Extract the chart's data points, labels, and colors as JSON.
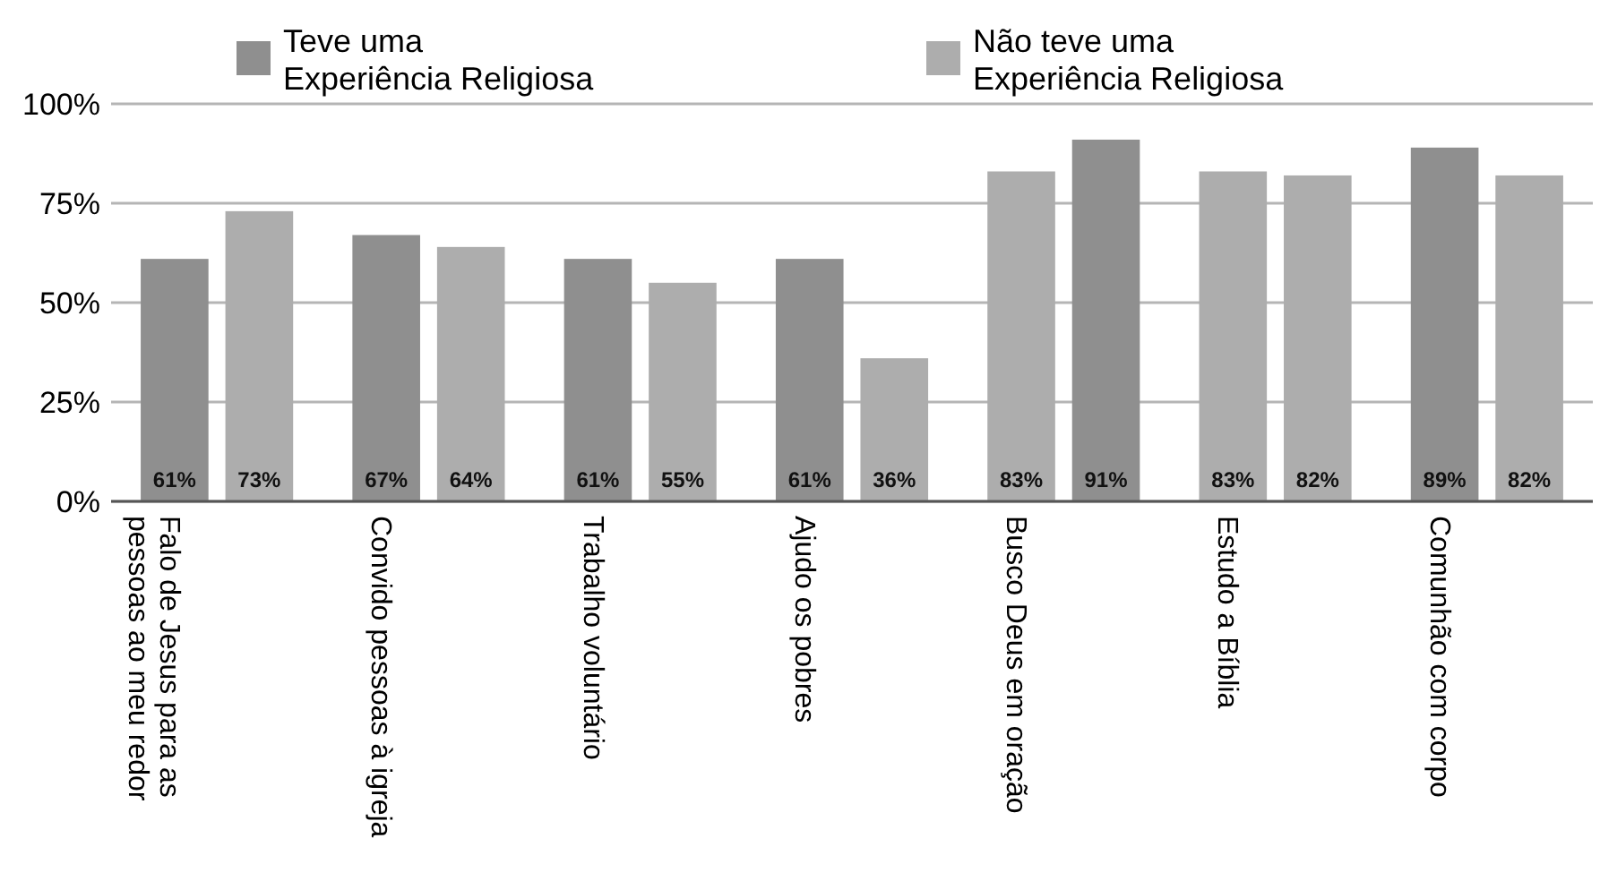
{
  "chart_data": {
    "type": "bar",
    "categories": [
      "Falo de Jesus para as pessoas ao meu redor",
      "Convido pessoas à igreja",
      "Trabalho voluntário",
      "Ajudo os pobres",
      "Busco Deus em oração",
      "Estudo a Bíblia",
      "Comunhão com corpo"
    ],
    "series": [
      {
        "name": "Teve uma Experiência Religiosa",
        "color": "#8f8f8f",
        "colors": [
          "#8f8f8f",
          "#8f8f8f",
          "#8f8f8f",
          "#8f8f8f",
          "#adadad",
          "#adadad",
          "#8f8f8f"
        ],
        "values": [
          61,
          67,
          61,
          61,
          83,
          83,
          89
        ],
        "value_labels": [
          "61%",
          "67%",
          "61%",
          "61%",
          "83%",
          "83%",
          "89%"
        ]
      },
      {
        "name": "Não teve uma Experiência Religiosa",
        "color": "#adadad",
        "colors": [
          "#adadad",
          "#adadad",
          "#adadad",
          "#adadad",
          "#8f8f8f",
          "#adadad",
          "#adadad"
        ],
        "values": [
          73,
          64,
          55,
          36,
          91,
          82,
          82
        ],
        "value_labels": [
          "73%",
          "64%",
          "55%",
          "36%",
          "91%",
          "82%",
          "82%"
        ]
      }
    ],
    "ylim": [
      0,
      100
    ],
    "yticks": [
      {
        "value": 0,
        "label": "0%"
      },
      {
        "value": 25,
        "label": "25%"
      },
      {
        "value": 50,
        "label": "50%"
      },
      {
        "value": 75,
        "label": "75%"
      },
      {
        "value": 100,
        "label": "100%"
      }
    ],
    "grid": "y",
    "legend": "top"
  }
}
